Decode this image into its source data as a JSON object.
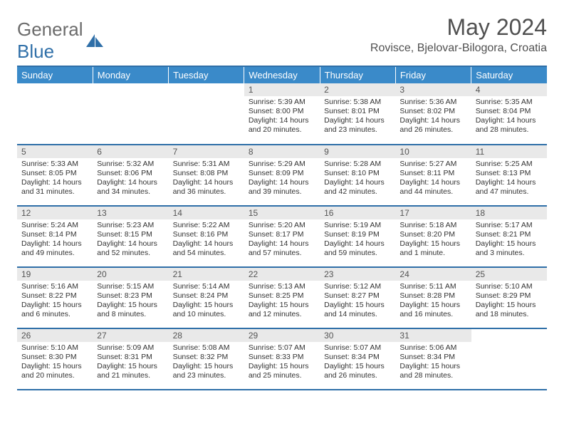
{
  "brand": {
    "name_part1": "General",
    "name_part2": "Blue"
  },
  "title": "May 2024",
  "location": "Rovisce, Bjelovar-Bilogora, Croatia",
  "colors": {
    "header_bg": "#3a8ac9",
    "rule": "#2f6fa8",
    "daynum_bg": "#e9e9e9",
    "text": "#333333"
  },
  "weekdays": [
    "Sunday",
    "Monday",
    "Tuesday",
    "Wednesday",
    "Thursday",
    "Friday",
    "Saturday"
  ],
  "weeks": [
    [
      {
        "n": "",
        "lines": []
      },
      {
        "n": "",
        "lines": []
      },
      {
        "n": "",
        "lines": []
      },
      {
        "n": "1",
        "lines": [
          "Sunrise: 5:39 AM",
          "Sunset: 8:00 PM",
          "Daylight: 14 hours",
          "and 20 minutes."
        ]
      },
      {
        "n": "2",
        "lines": [
          "Sunrise: 5:38 AM",
          "Sunset: 8:01 PM",
          "Daylight: 14 hours",
          "and 23 minutes."
        ]
      },
      {
        "n": "3",
        "lines": [
          "Sunrise: 5:36 AM",
          "Sunset: 8:02 PM",
          "Daylight: 14 hours",
          "and 26 minutes."
        ]
      },
      {
        "n": "4",
        "lines": [
          "Sunrise: 5:35 AM",
          "Sunset: 8:04 PM",
          "Daylight: 14 hours",
          "and 28 minutes."
        ]
      }
    ],
    [
      {
        "n": "5",
        "lines": [
          "Sunrise: 5:33 AM",
          "Sunset: 8:05 PM",
          "Daylight: 14 hours",
          "and 31 minutes."
        ]
      },
      {
        "n": "6",
        "lines": [
          "Sunrise: 5:32 AM",
          "Sunset: 8:06 PM",
          "Daylight: 14 hours",
          "and 34 minutes."
        ]
      },
      {
        "n": "7",
        "lines": [
          "Sunrise: 5:31 AM",
          "Sunset: 8:08 PM",
          "Daylight: 14 hours",
          "and 36 minutes."
        ]
      },
      {
        "n": "8",
        "lines": [
          "Sunrise: 5:29 AM",
          "Sunset: 8:09 PM",
          "Daylight: 14 hours",
          "and 39 minutes."
        ]
      },
      {
        "n": "9",
        "lines": [
          "Sunrise: 5:28 AM",
          "Sunset: 8:10 PM",
          "Daylight: 14 hours",
          "and 42 minutes."
        ]
      },
      {
        "n": "10",
        "lines": [
          "Sunrise: 5:27 AM",
          "Sunset: 8:11 PM",
          "Daylight: 14 hours",
          "and 44 minutes."
        ]
      },
      {
        "n": "11",
        "lines": [
          "Sunrise: 5:25 AM",
          "Sunset: 8:13 PM",
          "Daylight: 14 hours",
          "and 47 minutes."
        ]
      }
    ],
    [
      {
        "n": "12",
        "lines": [
          "Sunrise: 5:24 AM",
          "Sunset: 8:14 PM",
          "Daylight: 14 hours",
          "and 49 minutes."
        ]
      },
      {
        "n": "13",
        "lines": [
          "Sunrise: 5:23 AM",
          "Sunset: 8:15 PM",
          "Daylight: 14 hours",
          "and 52 minutes."
        ]
      },
      {
        "n": "14",
        "lines": [
          "Sunrise: 5:22 AM",
          "Sunset: 8:16 PM",
          "Daylight: 14 hours",
          "and 54 minutes."
        ]
      },
      {
        "n": "15",
        "lines": [
          "Sunrise: 5:20 AM",
          "Sunset: 8:17 PM",
          "Daylight: 14 hours",
          "and 57 minutes."
        ]
      },
      {
        "n": "16",
        "lines": [
          "Sunrise: 5:19 AM",
          "Sunset: 8:19 PM",
          "Daylight: 14 hours",
          "and 59 minutes."
        ]
      },
      {
        "n": "17",
        "lines": [
          "Sunrise: 5:18 AM",
          "Sunset: 8:20 PM",
          "Daylight: 15 hours",
          "and 1 minute."
        ]
      },
      {
        "n": "18",
        "lines": [
          "Sunrise: 5:17 AM",
          "Sunset: 8:21 PM",
          "Daylight: 15 hours",
          "and 3 minutes."
        ]
      }
    ],
    [
      {
        "n": "19",
        "lines": [
          "Sunrise: 5:16 AM",
          "Sunset: 8:22 PM",
          "Daylight: 15 hours",
          "and 6 minutes."
        ]
      },
      {
        "n": "20",
        "lines": [
          "Sunrise: 5:15 AM",
          "Sunset: 8:23 PM",
          "Daylight: 15 hours",
          "and 8 minutes."
        ]
      },
      {
        "n": "21",
        "lines": [
          "Sunrise: 5:14 AM",
          "Sunset: 8:24 PM",
          "Daylight: 15 hours",
          "and 10 minutes."
        ]
      },
      {
        "n": "22",
        "lines": [
          "Sunrise: 5:13 AM",
          "Sunset: 8:25 PM",
          "Daylight: 15 hours",
          "and 12 minutes."
        ]
      },
      {
        "n": "23",
        "lines": [
          "Sunrise: 5:12 AM",
          "Sunset: 8:27 PM",
          "Daylight: 15 hours",
          "and 14 minutes."
        ]
      },
      {
        "n": "24",
        "lines": [
          "Sunrise: 5:11 AM",
          "Sunset: 8:28 PM",
          "Daylight: 15 hours",
          "and 16 minutes."
        ]
      },
      {
        "n": "25",
        "lines": [
          "Sunrise: 5:10 AM",
          "Sunset: 8:29 PM",
          "Daylight: 15 hours",
          "and 18 minutes."
        ]
      }
    ],
    [
      {
        "n": "26",
        "lines": [
          "Sunrise: 5:10 AM",
          "Sunset: 8:30 PM",
          "Daylight: 15 hours",
          "and 20 minutes."
        ]
      },
      {
        "n": "27",
        "lines": [
          "Sunrise: 5:09 AM",
          "Sunset: 8:31 PM",
          "Daylight: 15 hours",
          "and 21 minutes."
        ]
      },
      {
        "n": "28",
        "lines": [
          "Sunrise: 5:08 AM",
          "Sunset: 8:32 PM",
          "Daylight: 15 hours",
          "and 23 minutes."
        ]
      },
      {
        "n": "29",
        "lines": [
          "Sunrise: 5:07 AM",
          "Sunset: 8:33 PM",
          "Daylight: 15 hours",
          "and 25 minutes."
        ]
      },
      {
        "n": "30",
        "lines": [
          "Sunrise: 5:07 AM",
          "Sunset: 8:34 PM",
          "Daylight: 15 hours",
          "and 26 minutes."
        ]
      },
      {
        "n": "31",
        "lines": [
          "Sunrise: 5:06 AM",
          "Sunset: 8:34 PM",
          "Daylight: 15 hours",
          "and 28 minutes."
        ]
      },
      {
        "n": "",
        "lines": []
      }
    ]
  ]
}
